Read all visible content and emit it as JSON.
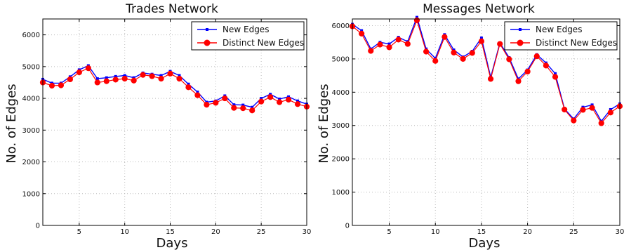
{
  "chart_data": [
    {
      "type": "line",
      "title": "Trades Network",
      "xlabel": "Days",
      "ylabel": "No. of Edges",
      "xlim": [
        1,
        30
      ],
      "ylim": [
        0,
        6500
      ],
      "xticks": [
        5,
        10,
        15,
        20,
        25,
        30
      ],
      "yticks": [
        0,
        1000,
        2000,
        3000,
        4000,
        5000,
        6000
      ],
      "grid": true,
      "legend_position": "top-right",
      "x": [
        1,
        2,
        3,
        4,
        5,
        6,
        7,
        8,
        9,
        10,
        11,
        12,
        13,
        14,
        15,
        16,
        17,
        18,
        19,
        20,
        21,
        22,
        23,
        24,
        25,
        26,
        27,
        28,
        29,
        30
      ],
      "series": [
        {
          "name": "New Edges",
          "color": "#0000ff",
          "marker": "square",
          "values": [
            4600,
            4480,
            4480,
            4680,
            4900,
            5030,
            4620,
            4650,
            4690,
            4720,
            4650,
            4800,
            4760,
            4720,
            4850,
            4720,
            4450,
            4200,
            3880,
            3920,
            4080,
            3800,
            3790,
            3720,
            4000,
            4130,
            3980,
            4050,
            3920,
            3820
          ]
        },
        {
          "name": "Distinct New Edges",
          "color": "#ff0000",
          "marker": "circle",
          "values": [
            4500,
            4400,
            4410,
            4600,
            4820,
            4950,
            4500,
            4540,
            4590,
            4620,
            4560,
            4740,
            4700,
            4620,
            4780,
            4620,
            4350,
            4100,
            3800,
            3860,
            4000,
            3700,
            3690,
            3620,
            3900,
            4040,
            3880,
            3960,
            3820,
            3740
          ]
        }
      ]
    },
    {
      "type": "line",
      "title": "Messages Network",
      "xlabel": "Days",
      "ylabel": "No. of Edges",
      "xlim": [
        1,
        30
      ],
      "ylim": [
        0,
        6200
      ],
      "xticks": [
        5,
        10,
        15,
        20,
        25,
        30
      ],
      "yticks": [
        0,
        1000,
        2000,
        3000,
        4000,
        5000,
        6000
      ],
      "grid": true,
      "legend_position": "top-right",
      "x": [
        1,
        2,
        3,
        4,
        5,
        6,
        7,
        8,
        9,
        10,
        11,
        12,
        13,
        14,
        15,
        16,
        17,
        18,
        19,
        20,
        21,
        22,
        23,
        24,
        25,
        26,
        27,
        28,
        29,
        30
      ],
      "series": [
        {
          "name": "New Edges",
          "color": "#0000ff",
          "marker": "square",
          "values": [
            6040,
            5850,
            5300,
            5500,
            5450,
            5650,
            5520,
            6250,
            5300,
            5020,
            5730,
            5270,
            5060,
            5230,
            5630,
            4450,
            5480,
            5040,
            4400,
            4670,
            5130,
            4880,
            4560,
            3500,
            3200,
            3550,
            3620,
            3130,
            3480,
            3650
          ]
        },
        {
          "name": "Distinct New Edges",
          "color": "#ff0000",
          "marker": "circle",
          "values": [
            5980,
            5760,
            5240,
            5430,
            5350,
            5580,
            5450,
            6160,
            5220,
            4940,
            5660,
            5190,
            5000,
            5180,
            5530,
            4400,
            5450,
            4990,
            4330,
            4620,
            5080,
            4800,
            4460,
            3480,
            3150,
            3470,
            3530,
            3070,
            3390,
            3580
          ]
        }
      ]
    }
  ]
}
